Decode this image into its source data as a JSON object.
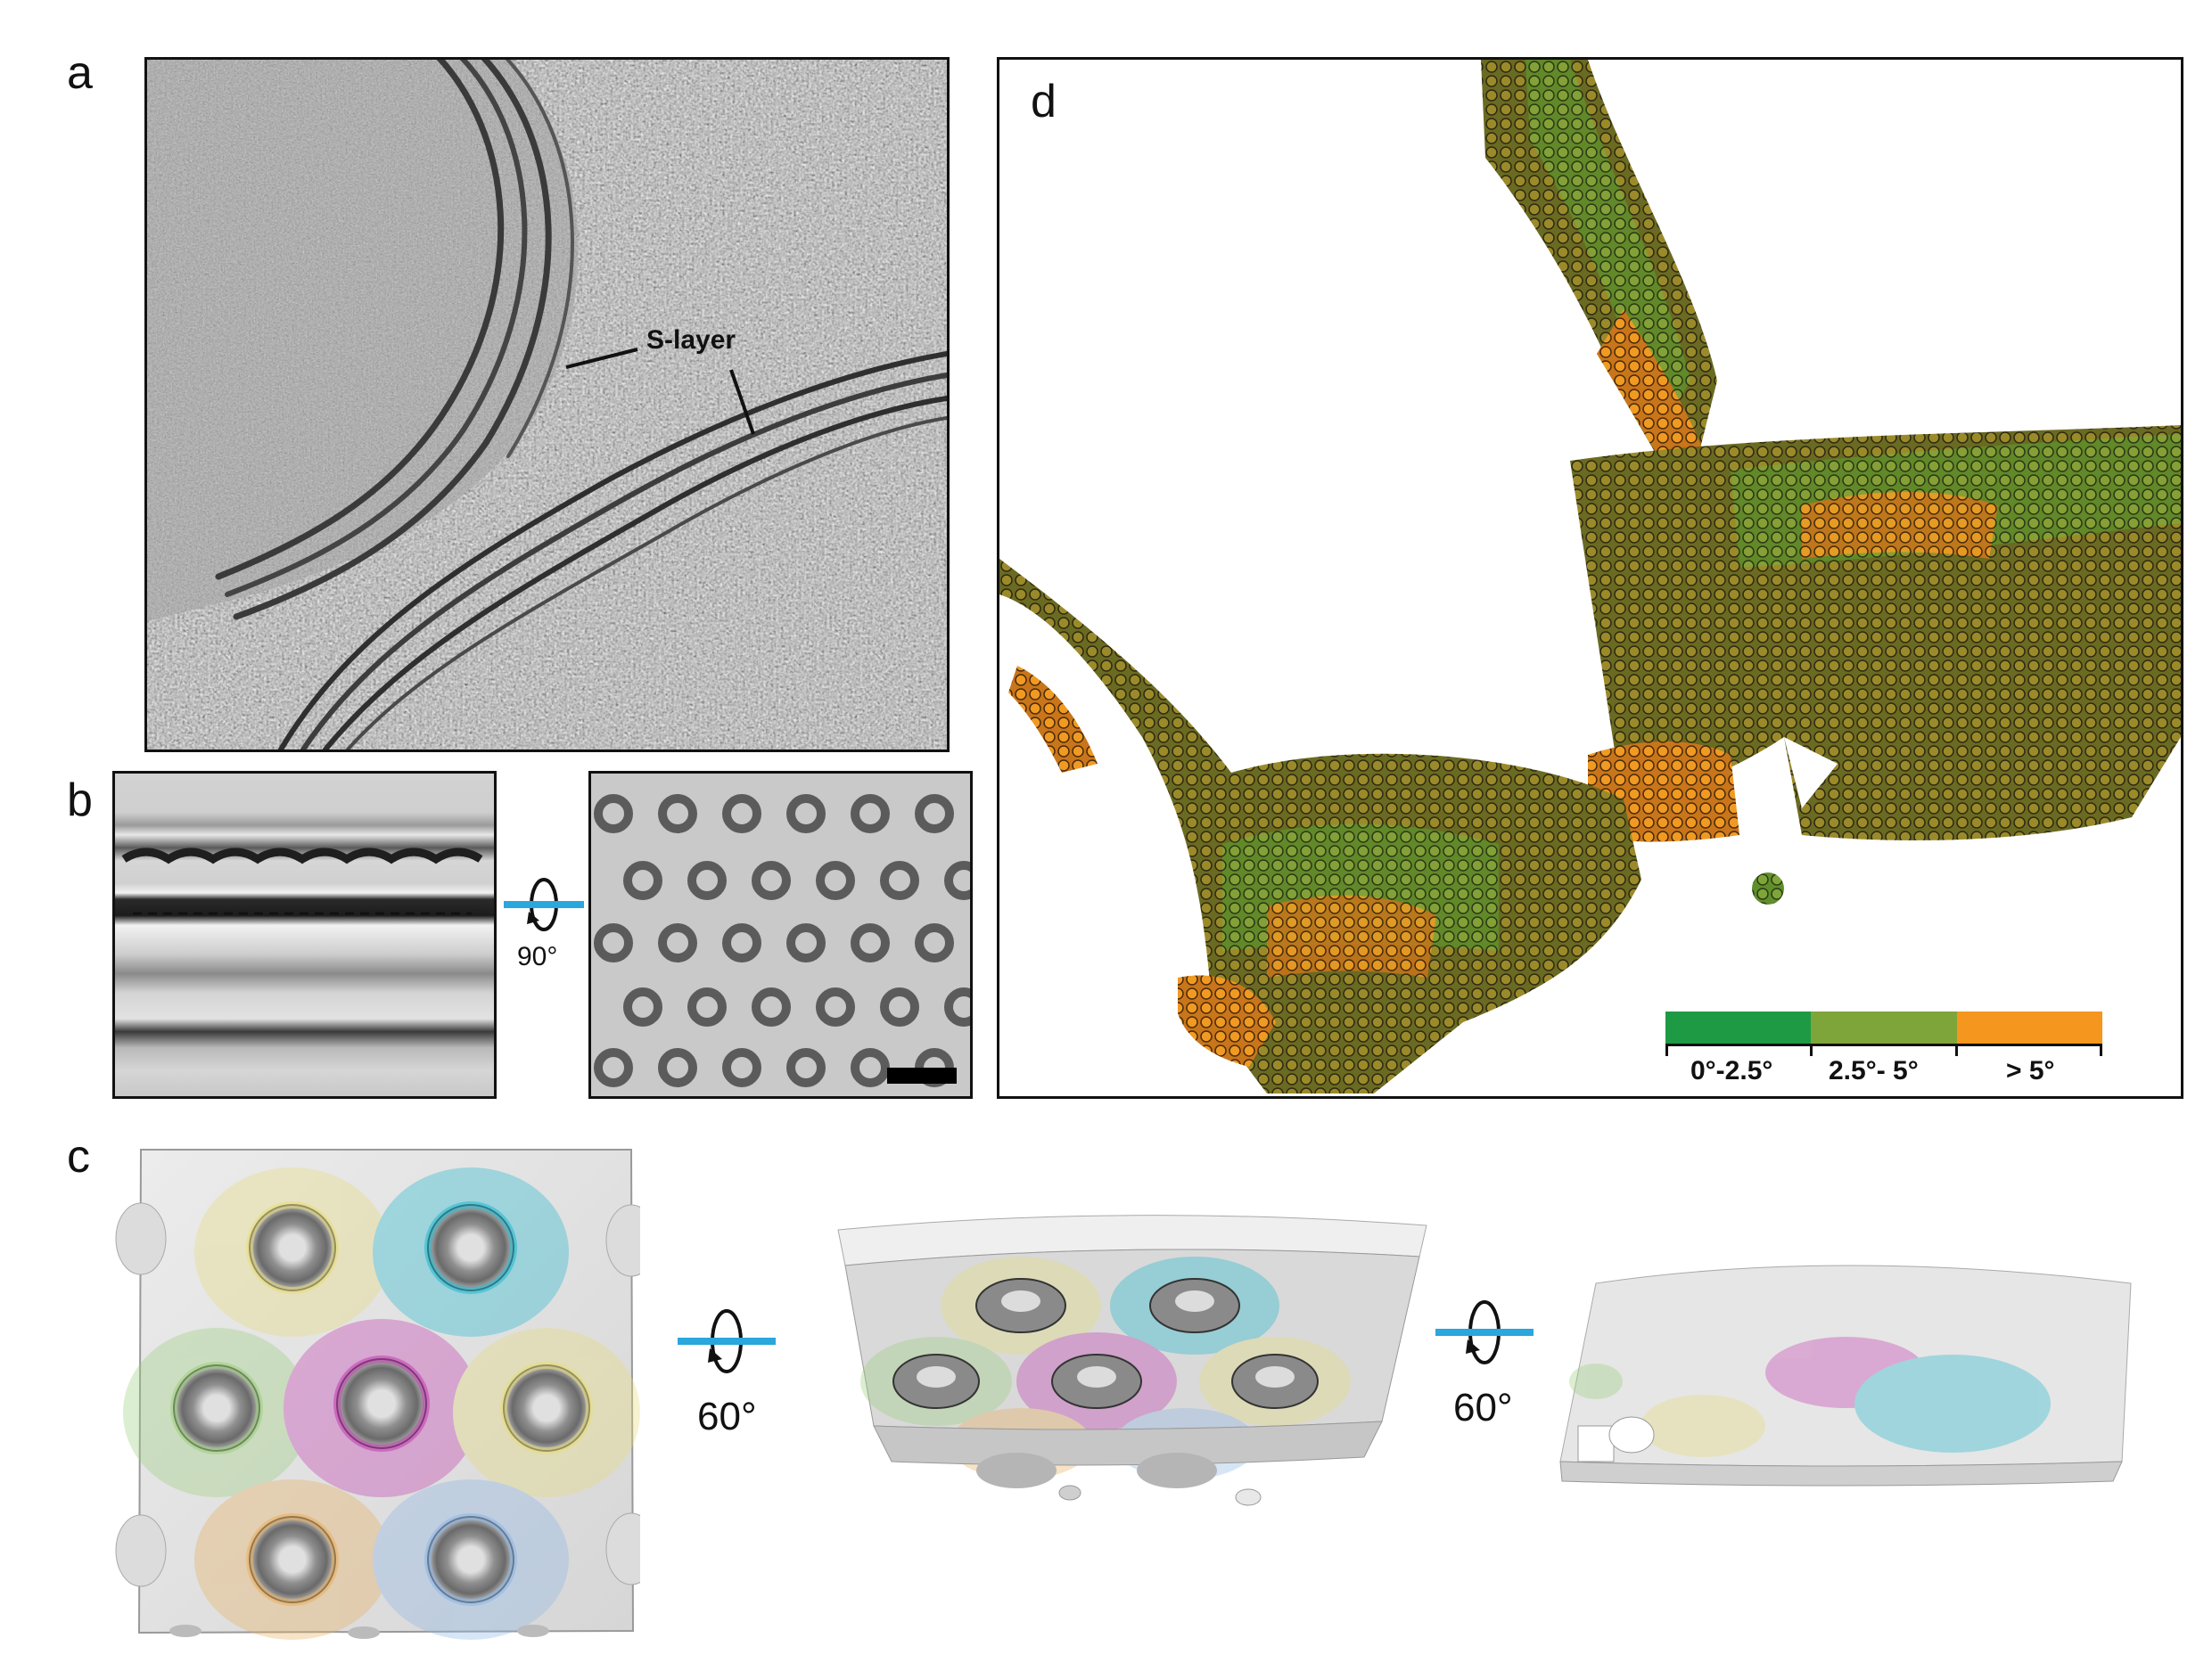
{
  "panels": {
    "a": {
      "label": "a",
      "annotation": "S-layer"
    },
    "b": {
      "label": "b",
      "rotation": "90°"
    },
    "c": {
      "label": "c",
      "rotation_1": "60°",
      "rotation_2": "60°"
    },
    "d": {
      "label": "d",
      "colorbar": {
        "bins": [
          {
            "label": "0°-2.5°",
            "color": "#1e9a44"
          },
          {
            "label": "2.5°- 5°",
            "color": "#7ea53a"
          },
          {
            "label": "> 5°",
            "color": "#f5961f"
          }
        ]
      }
    }
  },
  "colors": {
    "rotation_axis": "#2aa7dc",
    "membrane_gray": "#b9b9b9",
    "background_gray": "#9d9d9d",
    "subunit_magenta": "#c23bb0",
    "subunit_cyan": "#1fb8cf",
    "subunit_yellow": "#e7dc7a",
    "subunit_green": "#9ccf7c",
    "subunit_orange": "#e9ae5c",
    "subunit_blue": "#8db6e6"
  }
}
